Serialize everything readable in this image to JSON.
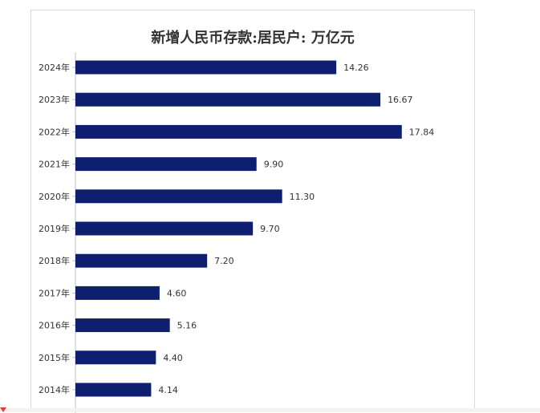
{
  "colors": {
    "bar": "#0d1f6e",
    "axis": "#bfbfbf",
    "label": "#333333",
    "panel_border": "#d9d9d9"
  },
  "chart_data": {
    "type": "bar",
    "orientation": "horizontal",
    "title": "新增人民币存款:居民户: 万亿元",
    "xlabel": "",
    "ylabel": "",
    "categories": [
      "2024年",
      "2023年",
      "2022年",
      "2021年",
      "2020年",
      "2019年",
      "2018年",
      "2017年",
      "2016年",
      "2015年",
      "2014年"
    ],
    "values": [
      14.26,
      16.67,
      17.84,
      9.9,
      11.3,
      9.7,
      7.2,
      4.6,
      5.16,
      4.4,
      4.14
    ],
    "value_labels": [
      "14.26",
      "16.67",
      "17.84",
      "9.90",
      "11.30",
      "9.70",
      "7.20",
      "4.60",
      "5.16",
      "4.40",
      "4.14"
    ],
    "xlim": [
      0,
      20
    ],
    "grid": false,
    "legend": "none"
  }
}
